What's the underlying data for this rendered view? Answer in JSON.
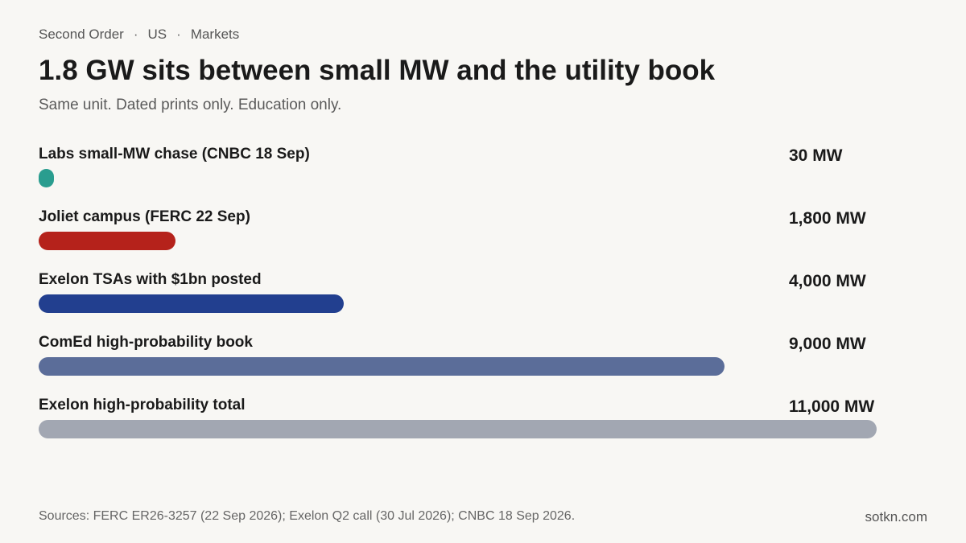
{
  "header": {
    "breadcrumb": [
      "Second Order",
      "US",
      "Markets"
    ],
    "separator": "·",
    "title": "1.8 GW sits between small MW and the utility book",
    "subtitle": "Same unit. Dated prints only. Education only."
  },
  "chart_data": {
    "type": "bar",
    "orientation": "horizontal",
    "unit": "MW",
    "xlim": [
      0,
      11000
    ],
    "grid": false,
    "categories": [
      "Labs small-MW chase (CNBC 18 Sep)",
      "Joliet campus (FERC 22 Sep)",
      "Exelon TSAs with $1bn posted",
      "ComEd high-probability book",
      "Exelon high-probability total"
    ],
    "values": [
      30,
      1800,
      4000,
      9000,
      11000
    ],
    "value_labels": [
      "30 MW",
      "1,800 MW",
      "4,000 MW",
      "9,000 MW",
      "11,000 MW"
    ],
    "colors": [
      "#2a9d8f",
      "#b5221b",
      "#223f8f",
      "#5b6d99",
      "#a2a7b2"
    ]
  },
  "footer": {
    "sources": "Sources: FERC ER26-3257 (22 Sep 2026); Exelon Q2 call (30 Jul 2026); CNBC 18 Sep 2026.",
    "brand": "sotkn.com"
  }
}
